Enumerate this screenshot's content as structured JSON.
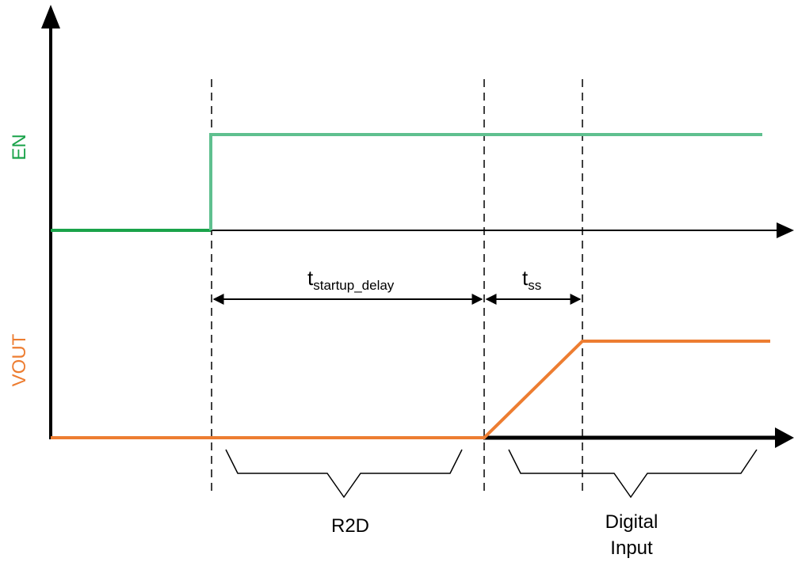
{
  "signals": {
    "en": {
      "label": "EN",
      "color": "#5fc08f",
      "label_color": "#1aa34a"
    },
    "vout": {
      "label": "VOUT",
      "color": "#ed7d31",
      "label_color": "#ed7d31"
    }
  },
  "intervals": {
    "startup_delay": {
      "main": "t",
      "subscript": "startup_delay"
    },
    "soft_start": {
      "main": "t",
      "subscript": "ss"
    }
  },
  "phases": {
    "r2d": {
      "label": "R2D"
    },
    "digital_input": {
      "line1": "Digital",
      "line2": "Input"
    }
  },
  "colors": {
    "axis": "#000000",
    "en_low": "#1aa34a"
  }
}
